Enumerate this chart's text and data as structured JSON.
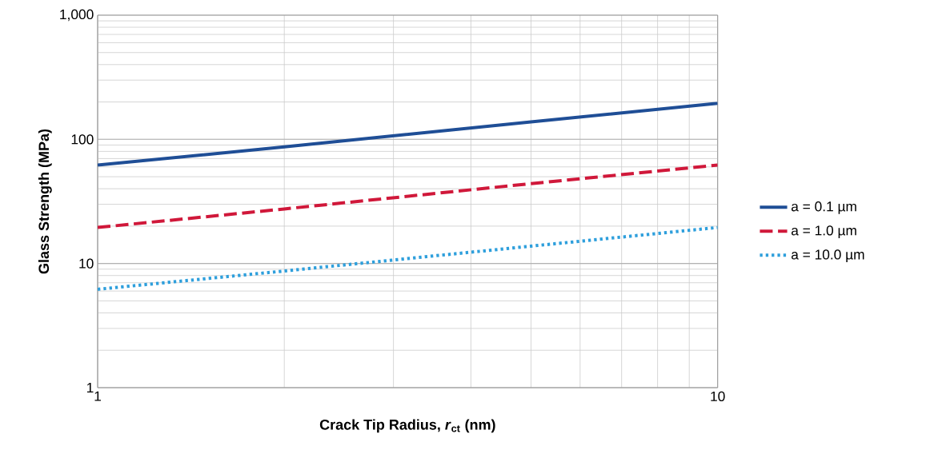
{
  "chart_data": {
    "type": "line",
    "xlabel": "Crack Tip Radius, *r*$_{ct}$ (nm)",
    "ylabel": "Glass Strength (MPa)",
    "log": "xy",
    "xlim": [
      1,
      10
    ],
    "ylim": [
      1,
      1000
    ],
    "xticks": [
      1,
      10
    ],
    "yticks": [
      1,
      10,
      100,
      {
        "value": 1000,
        "label": "1,000"
      }
    ],
    "grid": true,
    "legend": "right",
    "marker": "none",
    "series": [
      {
        "name": "a = 0.1 µm",
        "color": "#1f4e96",
        "line_style": "solid",
        "x": [
          1,
          2,
          5,
          10
        ],
        "values": [
          62,
          87,
          138,
          195
        ]
      },
      {
        "name": "a = 1.0 µm",
        "color": "#d0183a",
        "line_style": "dashed",
        "x": [
          1,
          2,
          5,
          10
        ],
        "values": [
          19.5,
          27.5,
          44,
          62
        ]
      },
      {
        "name": "a = 10.0 µm",
        "color": "#2e9fdc",
        "line_style": "dotted",
        "x": [
          1,
          2,
          5,
          10
        ],
        "values": [
          6.2,
          8.7,
          13.8,
          19.5
        ]
      }
    ]
  }
}
